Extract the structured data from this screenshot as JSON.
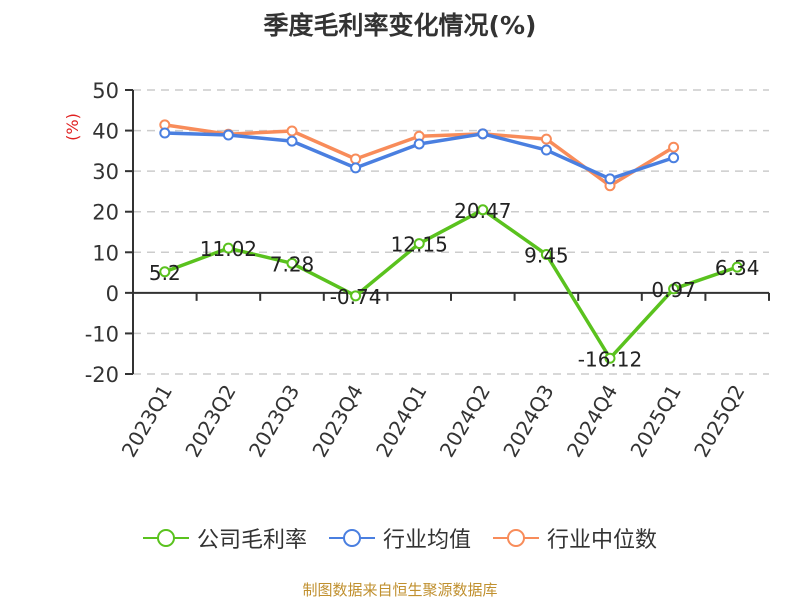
{
  "title": "季度毛利率变化情况(%)",
  "y_unit_label": "(%)",
  "source": "制图数据来自恒生聚源数据库",
  "colors": {
    "company": "#5ac21e",
    "industry_avg": "#4a7fe0",
    "industry_median": "#f88c5a",
    "unit_label": "#e02020",
    "source": "#c0902f"
  },
  "legend": [
    {
      "label": "公司毛利率",
      "color": "#5ac21e"
    },
    {
      "label": "行业均值",
      "color": "#4a7fe0"
    },
    {
      "label": "行业中位数",
      "color": "#f88c5a"
    }
  ],
  "chart_data": {
    "type": "line",
    "title": "季度毛利率变化情况(%)",
    "xlabel": "",
    "ylabel": "(%)",
    "ylim": [
      -20,
      50
    ],
    "yticks": [
      50,
      40,
      30,
      20,
      10,
      0,
      -10,
      -20
    ],
    "grid": true,
    "legend_position": "bottom",
    "categories": [
      "2023Q1",
      "2023Q2",
      "2023Q3",
      "2023Q4",
      "2024Q1",
      "2024Q2",
      "2024Q3",
      "2024Q4",
      "2025Q1",
      "2025Q2"
    ],
    "series": [
      {
        "name": "公司毛利率",
        "values": [
          5.2,
          11.02,
          7.28,
          -0.74,
          12.15,
          20.47,
          9.45,
          -16.12,
          0.97,
          6.34
        ],
        "labels": [
          "5.2",
          "11.02",
          "7.28",
          "-0.74",
          "12.15",
          "20.47",
          "9.45",
          "-16.12",
          "0.97",
          "6.34"
        ]
      },
      {
        "name": "行业均值",
        "values": [
          39.4,
          38.9,
          37.4,
          30.8,
          36.7,
          39.2,
          35.2,
          28.1,
          33.3,
          null
        ]
      },
      {
        "name": "行业中位数",
        "values": [
          41.4,
          39.1,
          39.9,
          33.0,
          38.6,
          39.2,
          37.9,
          26.4,
          35.9,
          null
        ]
      }
    ]
  }
}
